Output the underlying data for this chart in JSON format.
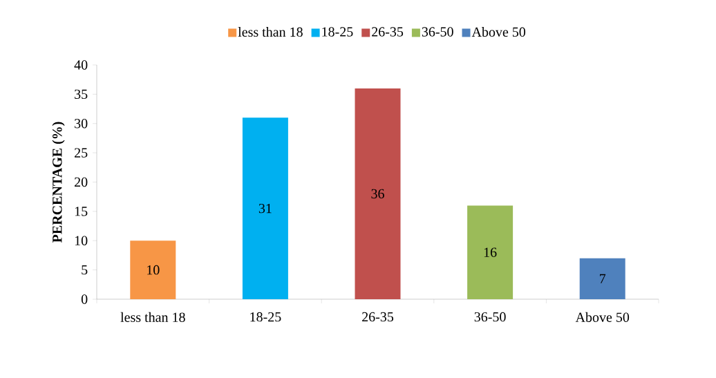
{
  "chart_data": {
    "type": "bar",
    "ylabel": "PERCENTAGE  (%)",
    "categories": [
      "less than 18",
      "18-25",
      "26-35",
      "36-50",
      "Above 50"
    ],
    "series": [
      {
        "name": "less than 18",
        "color": "#f79646",
        "values": [
          10,
          null,
          null,
          null,
          null
        ]
      },
      {
        "name": "18-25",
        "color": "#00b0f0",
        "values": [
          null,
          31,
          null,
          null,
          null
        ]
      },
      {
        "name": "26-35",
        "color": "#c0504d",
        "values": [
          null,
          null,
          36,
          null,
          null
        ]
      },
      {
        "name": "36-50",
        "color": "#9bbb59",
        "values": [
          null,
          null,
          null,
          16,
          null
        ]
      },
      {
        "name": "Above 50",
        "color": "#4f81bd",
        "values": [
          null,
          null,
          null,
          null,
          7
        ]
      }
    ],
    "ylim": [
      0,
      40
    ],
    "yticks": [
      0,
      5,
      10,
      15,
      20,
      25,
      30,
      35,
      40
    ],
    "data_labels": true,
    "legend": "top",
    "grid": false
  }
}
